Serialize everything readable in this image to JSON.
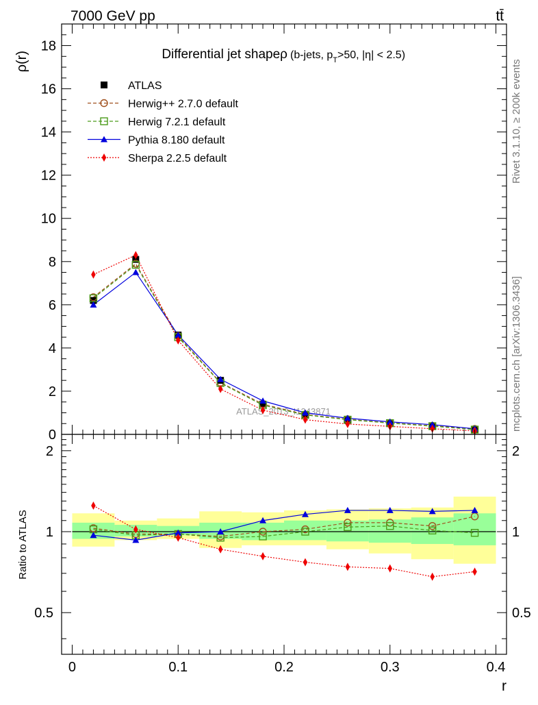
{
  "header": {
    "energy_label": "7000 GeV pp",
    "process_label": "tt̄"
  },
  "side_labels": {
    "rivet": "Rivet 3.1.10, ≥ 200k events",
    "source": "mcplots.cern.ch [arXiv:1306.3436]"
  },
  "chart_data": [
    {
      "type": "line",
      "title": "Differential jet shapeρ",
      "title_sub": "(b-jets, p",
      "title_sub_T": "T",
      "title_sub_rest": ">50, |η| < 2.5)",
      "watermark": "ATLAS_2013_I1243871",
      "ylabel": "ρ(r)",
      "xlabel": "r",
      "xlim": [
        -0.01,
        0.41
      ],
      "ylim": [
        0,
        19
      ],
      "yticks": [
        0,
        2,
        4,
        6,
        8,
        10,
        12,
        14,
        16,
        18
      ],
      "ytick_labels": [
        "0",
        "2",
        "4",
        "6",
        "8",
        "10",
        "12",
        "14",
        "16",
        "18"
      ],
      "x": [
        0.02,
        0.06,
        0.1,
        0.14,
        0.18,
        0.22,
        0.26,
        0.3,
        0.34,
        0.38
      ],
      "series": [
        {
          "name": "ATLAS",
          "color": "#000000",
          "marker": "filled-square",
          "values": [
            6.2,
            8.1,
            4.6,
            2.5,
            1.4,
            0.9,
            0.65,
            0.5,
            0.38,
            0.22
          ]
        },
        {
          "name": "Herwig++ 2.7.0 default",
          "color": "#a0501e",
          "marker": "open-circle",
          "dash": "5,3",
          "values": [
            6.35,
            7.9,
            4.55,
            2.4,
            1.4,
            0.92,
            0.7,
            0.53,
            0.4,
            0.25
          ]
        },
        {
          "name": "Herwig 7.2.1 default",
          "color": "#4a9a1a",
          "marker": "open-square",
          "dash": "5,3",
          "values": [
            6.3,
            7.85,
            4.5,
            2.38,
            1.35,
            0.9,
            0.68,
            0.52,
            0.38,
            0.22
          ]
        },
        {
          "name": "Pythia 8.180 default",
          "color": "#0000dd",
          "marker": "filled-triangle",
          "values": [
            6.0,
            7.5,
            4.6,
            2.55,
            1.55,
            1.0,
            0.75,
            0.58,
            0.45,
            0.26
          ]
        },
        {
          "name": "Sherpa 2.2.5 default",
          "color": "#ee0000",
          "marker": "filled-diamond",
          "dash": "2,2",
          "values": [
            7.4,
            8.3,
            4.35,
            2.1,
            1.12,
            0.68,
            0.48,
            0.37,
            0.26,
            0.16
          ]
        }
      ]
    },
    {
      "type": "line",
      "ylabel": "Ratio to ATLAS",
      "xlabel": "r",
      "xlim": [
        -0.01,
        0.41
      ],
      "ylim": [
        0.35,
        2.3
      ],
      "yticks": [
        0.5,
        1,
        2
      ],
      "ytick_labels": [
        "0.5",
        "1",
        "2"
      ],
      "xticks": [
        0,
        0.1,
        0.2,
        0.3,
        0.4
      ],
      "xtick_labels": [
        "0",
        "0.1",
        "0.2",
        "0.3",
        "0.4"
      ],
      "x": [
        0.02,
        0.06,
        0.1,
        0.14,
        0.18,
        0.22,
        0.26,
        0.3,
        0.34,
        0.38
      ],
      "band_edges": [
        0.0,
        0.04,
        0.08,
        0.12,
        0.16,
        0.2,
        0.24,
        0.28,
        0.32,
        0.36,
        0.4
      ],
      "band_inner": [
        [
          0.94,
          1.08
        ],
        [
          0.96,
          1.06
        ],
        [
          0.97,
          1.05
        ],
        [
          0.94,
          1.08
        ],
        [
          0.93,
          1.08
        ],
        [
          0.93,
          1.1
        ],
        [
          0.92,
          1.1
        ],
        [
          0.91,
          1.11
        ],
        [
          0.9,
          1.13
        ],
        [
          0.89,
          1.17
        ]
      ],
      "band_outer": [
        [
          0.88,
          1.17
        ],
        [
          0.93,
          1.1
        ],
        [
          0.94,
          1.12
        ],
        [
          0.87,
          1.19
        ],
        [
          0.89,
          1.18
        ],
        [
          0.89,
          1.2
        ],
        [
          0.86,
          1.21
        ],
        [
          0.83,
          1.22
        ],
        [
          0.79,
          1.23
        ],
        [
          0.76,
          1.35
        ]
      ],
      "series": [
        {
          "name": "Herwig++ 2.7.0 default",
          "color": "#a0501e",
          "marker": "open-circle",
          "dash": "5,3",
          "values": [
            1.03,
            0.98,
            0.98,
            0.96,
            1.0,
            1.02,
            1.08,
            1.08,
            1.05,
            1.14
          ]
        },
        {
          "name": "Herwig 7.2.1 default",
          "color": "#4a9a1a",
          "marker": "open-square",
          "dash": "5,3",
          "values": [
            1.02,
            0.97,
            0.98,
            0.95,
            0.96,
            1.0,
            1.04,
            1.05,
            1.01,
            0.99
          ]
        },
        {
          "name": "Pythia 8.180 default",
          "color": "#0000dd",
          "marker": "filled-triangle",
          "values": [
            0.97,
            0.93,
            0.99,
            1.0,
            1.1,
            1.16,
            1.2,
            1.2,
            1.19,
            1.2
          ]
        },
        {
          "name": "Sherpa 2.2.5 default",
          "color": "#ee0000",
          "marker": "filled-diamond",
          "dash": "2,2",
          "values": [
            1.25,
            1.02,
            0.95,
            0.86,
            0.81,
            0.77,
            0.74,
            0.73,
            0.68,
            0.71
          ]
        }
      ]
    }
  ]
}
